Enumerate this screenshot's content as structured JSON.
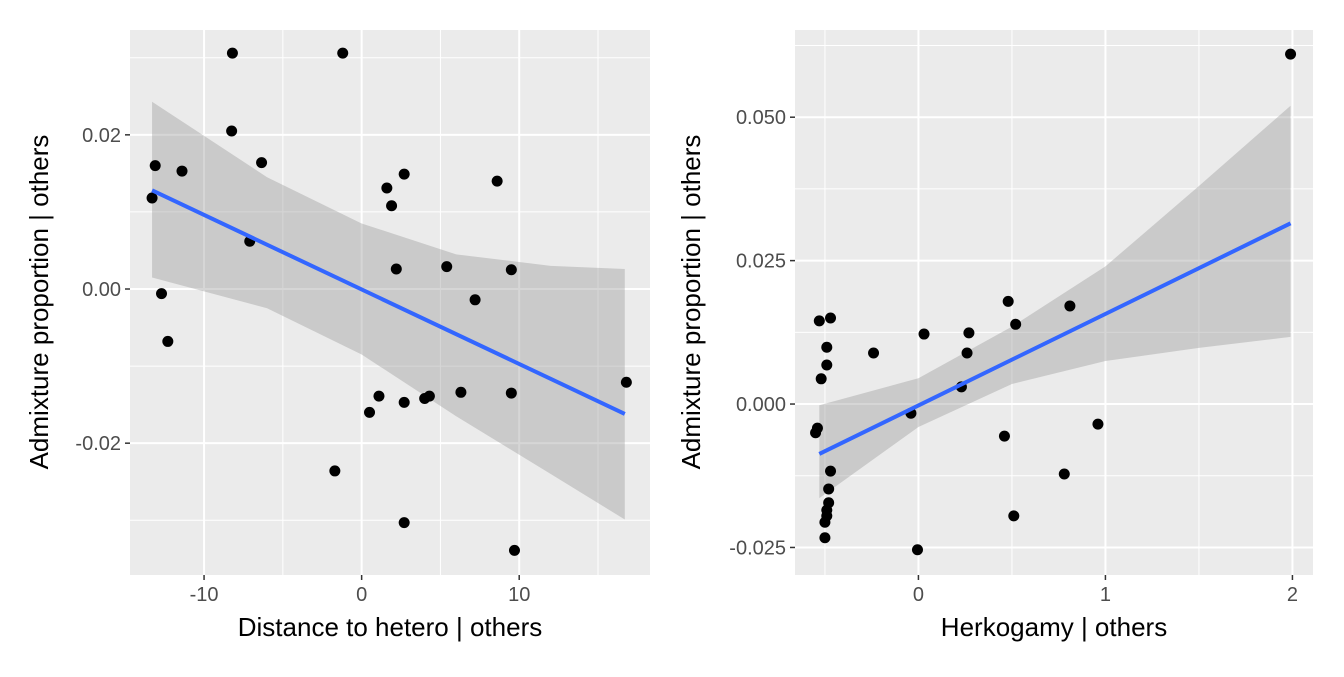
{
  "chart_data": [
    {
      "type": "scatter",
      "xlabel": "Distance to hetero | others",
      "ylabel": "Admixture proportion | others",
      "xlim": [
        -14.7,
        18.3
      ],
      "ylim": [
        -0.0371,
        0.0336
      ],
      "xticks": [
        -10,
        0,
        10
      ],
      "xtick_labels": [
        "-10",
        "0",
        "10"
      ],
      "xminor": [
        -15,
        -5,
        5,
        15
      ],
      "yticks": [
        -0.02,
        0.0,
        0.02
      ],
      "ytick_labels": [
        "-0.02",
        "0.00",
        "0.02"
      ],
      "yminor": [
        -0.03,
        -0.01,
        0.01,
        0.03
      ],
      "points": [
        [
          -8.2,
          0.0306
        ],
        [
          -1.2,
          0.0306
        ],
        [
          -8.25,
          0.0205
        ],
        [
          -6.35,
          0.0164
        ],
        [
          -13.1,
          0.016
        ],
        [
          -11.4,
          0.0153
        ],
        [
          -13.3,
          0.0118
        ],
        [
          -7.1,
          0.0062
        ],
        [
          -12.7,
          -0.0006
        ],
        [
          -12.3,
          -0.0068
        ],
        [
          1.6,
          0.0131
        ],
        [
          1.9,
          0.0108
        ],
        [
          2.7,
          0.0149
        ],
        [
          8.6,
          0.014
        ],
        [
          2.2,
          0.0026
        ],
        [
          5.4,
          0.0029
        ],
        [
          9.5,
          0.0025
        ],
        [
          7.2,
          -0.0014
        ],
        [
          1.1,
          -0.0139
        ],
        [
          0.5,
          -0.016
        ],
        [
          2.7,
          -0.0147
        ],
        [
          4.0,
          -0.0142
        ],
        [
          4.3,
          -0.0139
        ],
        [
          6.3,
          -0.0134
        ],
        [
          9.5,
          -0.0135
        ],
        [
          16.8,
          -0.0121
        ],
        [
          -1.7,
          -0.0236
        ],
        [
          2.7,
          -0.0303
        ],
        [
          9.7,
          -0.0339
        ]
      ],
      "fit": {
        "x": [
          -13.3,
          16.7
        ],
        "y": [
          0.0128,
          -0.0162
        ]
      },
      "ribbon": {
        "x": [
          -13.3,
          -6,
          0,
          6,
          12,
          16.7
        ],
        "upper": [
          0.0243,
          0.0145,
          0.0085,
          0.0045,
          0.003,
          0.0026
        ],
        "lower": [
          0.0015,
          -0.0025,
          -0.0085,
          -0.0165,
          -0.024,
          -0.0299
        ]
      },
      "colors": {
        "line": "#3366FF",
        "ribbon": "#999999",
        "panel": "#EBEBEB"
      }
    },
    {
      "type": "scatter",
      "xlabel": "Herkogamy | others",
      "ylabel": "Admixture proportion | others",
      "xlim": [
        -0.66,
        2.11
      ],
      "ylim": [
        -0.0298,
        0.0652
      ],
      "xticks": [
        0,
        1,
        2
      ],
      "xtick_labels": [
        "0",
        "1",
        "2"
      ],
      "xminor": [
        -0.5,
        0.5,
        1.5
      ],
      "yticks": [
        -0.025,
        0.0,
        0.025,
        0.05
      ],
      "ytick_labels": [
        "-0.025",
        "0.000",
        "0.025",
        "0.050"
      ],
      "yminor": [
        -0.0125,
        0.0125,
        0.0375,
        0.0625
      ],
      "points": [
        [
          1.99,
          0.061
        ],
        [
          0.48,
          0.0179
        ],
        [
          0.81,
          0.0171
        ],
        [
          0.52,
          0.0139
        ],
        [
          0.27,
          0.0124
        ],
        [
          0.03,
          0.0122
        ],
        [
          -0.24,
          0.0089
        ],
        [
          0.26,
          0.0089
        ],
        [
          0.23,
          0.003
        ],
        [
          -0.04,
          -0.0016
        ],
        [
          0.46,
          -0.0056
        ],
        [
          0.96,
          -0.0035
        ],
        [
          0.78,
          -0.0122
        ],
        [
          0.51,
          -0.0195
        ],
        [
          -0.005,
          -0.0254
        ],
        [
          -0.53,
          0.0145
        ],
        [
          -0.47,
          0.015
        ],
        [
          -0.49,
          0.0099
        ],
        [
          -0.49,
          0.0068
        ],
        [
          -0.52,
          0.0044
        ],
        [
          -0.54,
          -0.0042
        ],
        [
          -0.55,
          -0.005
        ],
        [
          -0.47,
          -0.0117
        ],
        [
          -0.48,
          -0.0148
        ],
        [
          -0.48,
          -0.0172
        ],
        [
          -0.49,
          -0.0185
        ],
        [
          -0.49,
          -0.0195
        ],
        [
          -0.5,
          -0.0206
        ],
        [
          -0.5,
          -0.0233
        ]
      ],
      "fit": {
        "x": [
          -0.53,
          1.99
        ],
        "y": [
          -0.0087,
          0.0315
        ]
      },
      "ribbon": {
        "x": [
          -0.53,
          0,
          0.5,
          1,
          1.5,
          1.99
        ],
        "upper": [
          -0.0002,
          0.0045,
          0.0135,
          0.024,
          0.038,
          0.052
        ],
        "lower": [
          -0.0164,
          -0.004,
          0.0035,
          0.0075,
          0.0098,
          0.0117
        ]
      },
      "colors": {
        "line": "#3366FF",
        "ribbon": "#999999",
        "panel": "#EBEBEB"
      }
    }
  ]
}
